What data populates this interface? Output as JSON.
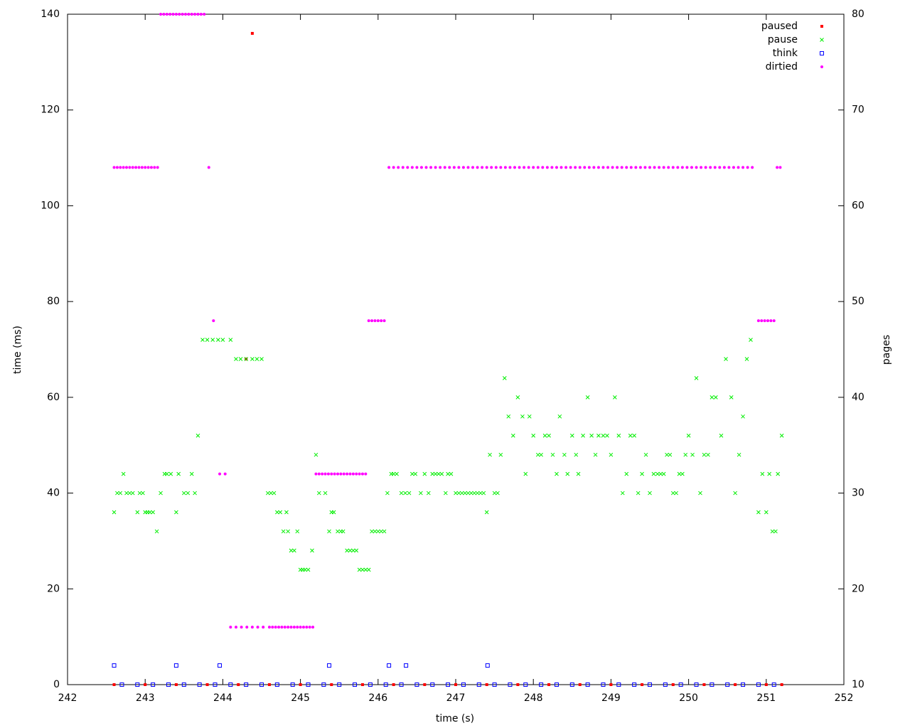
{
  "chart_data": {
    "type": "scatter",
    "x_label": "time (s)",
    "y_label": "time (ms)",
    "y2_label": "pages",
    "xlim": [
      242,
      252
    ],
    "xticks": [
      242,
      243,
      244,
      245,
      246,
      247,
      248,
      249,
      250,
      251,
      252
    ],
    "ylim": [
      0,
      140
    ],
    "yticks": [
      0,
      20,
      40,
      60,
      80,
      100,
      120,
      140
    ],
    "y2lim": [
      10,
      80
    ],
    "y2ticks": [
      10,
      20,
      30,
      40,
      50,
      60,
      70,
      80
    ],
    "legend": "top-right",
    "series": [
      {
        "name": "paused",
        "color": "#ff0000",
        "marker": "square",
        "x": [
          242.6,
          243,
          243.4,
          243.8,
          244.2,
          244.3,
          244.38,
          244.6,
          245,
          245.4,
          245.8,
          246.2,
          246.6,
          247,
          247.4,
          247.8,
          248.2,
          248.6,
          249,
          249.4,
          249.8,
          250.2,
          250.6,
          251,
          251.2
        ],
        "values": [
          0,
          0,
          0,
          0,
          0,
          68,
          136,
          0,
          0,
          0,
          0,
          0,
          0,
          0,
          0,
          0,
          0,
          0,
          0,
          0,
          0,
          0,
          0,
          0,
          0
        ]
      },
      {
        "name": "pause",
        "color": "#00ee00",
        "marker": "cross",
        "x": [
          242.6,
          242.64,
          242.68,
          242.72,
          242.76,
          242.8,
          242.84,
          242.9,
          242.93,
          242.97,
          243,
          243.03,
          243.06,
          243.1,
          243.15,
          243.2,
          243.25,
          243.28,
          243.33,
          243.4,
          243.43,
          243.5,
          243.55,
          243.6,
          243.64,
          243.68,
          243.74,
          243.8,
          243.87,
          243.94,
          244,
          244.1,
          244.17,
          244.23,
          244.3,
          244.38,
          244.44,
          244.5,
          244.58,
          244.62,
          244.66,
          244.7,
          244.74,
          244.78,
          244.82,
          244.84,
          244.88,
          244.92,
          244.96,
          245,
          245.03,
          245.06,
          245.1,
          245.15,
          245.2,
          245.24,
          245.32,
          245.37,
          245.4,
          245.43,
          245.48,
          245.52,
          245.55,
          245.6,
          245.64,
          245.68,
          245.72,
          245.76,
          245.8,
          245.84,
          245.88,
          245.92,
          245.96,
          246,
          246.04,
          246.08,
          246.12,
          246.17,
          246.2,
          246.24,
          246.3,
          246.35,
          246.4,
          246.44,
          246.48,
          246.55,
          246.6,
          246.65,
          246.7,
          246.74,
          246.78,
          246.82,
          246.87,
          246.9,
          246.94,
          247,
          247.04,
          247.08,
          247.12,
          247.16,
          247.2,
          247.24,
          247.28,
          247.32,
          247.36,
          247.4,
          247.44,
          247.5,
          247.54,
          247.58,
          247.63,
          247.68,
          247.74,
          247.8,
          247.86,
          247.9,
          247.95,
          248,
          248.06,
          248.1,
          248.15,
          248.2,
          248.25,
          248.3,
          248.34,
          248.4,
          248.44,
          248.5,
          248.55,
          248.58,
          248.64,
          248.7,
          248.75,
          248.8,
          248.84,
          248.9,
          248.95,
          249,
          249.05,
          249.1,
          249.15,
          249.2,
          249.25,
          249.3,
          249.35,
          249.4,
          249.45,
          249.5,
          249.55,
          249.6,
          249.64,
          249.68,
          249.72,
          249.76,
          249.8,
          249.84,
          249.88,
          249.92,
          249.96,
          250,
          250.05,
          250.1,
          250.15,
          250.2,
          250.25,
          250.3,
          250.35,
          250.42,
          250.48,
          250.55,
          250.6,
          250.65,
          250.7,
          250.75,
          250.8,
          250.9,
          250.95,
          251,
          251.04,
          251.08,
          251.12,
          251.15,
          251.2
        ],
        "values": [
          36,
          40,
          40,
          44,
          40,
          40,
          40,
          36,
          40,
          40,
          36,
          36,
          36,
          36,
          32,
          40,
          44,
          44,
          44,
          36,
          44,
          40,
          40,
          44,
          40,
          52,
          72,
          72,
          72,
          72,
          72,
          72,
          68,
          68,
          68,
          68,
          68,
          68,
          40,
          40,
          40,
          36,
          36,
          32,
          36,
          32,
          28,
          28,
          32,
          24,
          24,
          24,
          24,
          28,
          48,
          40,
          40,
          32,
          36,
          36,
          32,
          32,
          32,
          28,
          28,
          28,
          28,
          24,
          24,
          24,
          24,
          32,
          32,
          32,
          32,
          32,
          40,
          44,
          44,
          44,
          40,
          40,
          40,
          44,
          44,
          40,
          44,
          40,
          44,
          44,
          44,
          44,
          40,
          44,
          44,
          40,
          40,
          40,
          40,
          40,
          40,
          40,
          40,
          40,
          40,
          36,
          48,
          40,
          40,
          48,
          64,
          56,
          52,
          60,
          56,
          44,
          56,
          52,
          48,
          48,
          52,
          52,
          48,
          44,
          56,
          48,
          44,
          52,
          48,
          44,
          52,
          60,
          52,
          48,
          52,
          52,
          52,
          48,
          60,
          52,
          40,
          44,
          52,
          52,
          40,
          44,
          48,
          40,
          44,
          44,
          44,
          44,
          48,
          48,
          40,
          40,
          44,
          44,
          48,
          52,
          48,
          64,
          40,
          48,
          48,
          60,
          60,
          52,
          68,
          60,
          40,
          48,
          56,
          68,
          72,
          36,
          44,
          36,
          44,
          32,
          32,
          44,
          52
        ]
      },
      {
        "name": "think",
        "color": "#0000ff",
        "marker": "open-square",
        "x": [
          242.6,
          243.4,
          243.96,
          245.37,
          246.14,
          246.36,
          247.41,
          242.7,
          242.9,
          243.1,
          243.3,
          243.5,
          243.7,
          243.9,
          244.1,
          244.3,
          244.5,
          244.7,
          244.9,
          245.1,
          245.3,
          245.5,
          245.7,
          245.9,
          246.1,
          246.3,
          246.5,
          246.7,
          246.9,
          247.1,
          247.3,
          247.5,
          247.7,
          247.9,
          248.1,
          248.3,
          248.5,
          248.7,
          248.9,
          249.1,
          249.3,
          249.5,
          249.7,
          249.9,
          250.1,
          250.3,
          250.5,
          250.7,
          250.9,
          251.1
        ],
        "values": [
          4,
          4,
          4,
          4,
          4,
          4,
          4,
          0,
          0,
          0,
          0,
          0,
          0,
          0,
          0,
          0,
          0,
          0,
          0,
          0,
          0,
          0,
          0,
          0,
          0,
          0,
          0,
          0,
          0,
          0,
          0,
          0,
          0,
          0,
          0,
          0,
          0,
          0,
          0,
          0,
          0,
          0,
          0,
          0,
          0,
          0,
          0,
          0,
          0,
          0
        ]
      },
      {
        "name": "dirtied",
        "color": "#ff00ff",
        "marker": "circle",
        "axis": "y2",
        "x": [
          242.6,
          242.64,
          242.68,
          242.72,
          242.76,
          242.8,
          242.84,
          242.88,
          242.92,
          242.96,
          243,
          243.04,
          243.08,
          243.12,
          243.16,
          243.2,
          243.24,
          243.28,
          243.32,
          243.36,
          243.4,
          243.44,
          243.48,
          243.52,
          243.56,
          243.6,
          243.64,
          243.68,
          243.72,
          243.76,
          243.82,
          243.88,
          243.96,
          244.03,
          244.1,
          244.17,
          244.24,
          244.31,
          244.38,
          244.45,
          244.52,
          244.6,
          244.64,
          244.68,
          244.72,
          244.76,
          244.8,
          244.84,
          244.88,
          244.92,
          244.96,
          245,
          245.04,
          245.08,
          245.12,
          245.16,
          245.2,
          245.24,
          245.28,
          245.32,
          245.36,
          245.4,
          245.44,
          245.48,
          245.52,
          245.56,
          245.6,
          245.64,
          245.68,
          245.72,
          245.76,
          245.8,
          245.84,
          245.88,
          245.92,
          245.96,
          246,
          246.04,
          246.08,
          246.14,
          246.2,
          246.26,
          246.32,
          246.38,
          246.44,
          246.5,
          246.56,
          246.62,
          246.68,
          246.74,
          246.8,
          246.86,
          246.92,
          246.98,
          247.04,
          247.1,
          247.16,
          247.22,
          247.28,
          247.34,
          247.4,
          247.46,
          247.52,
          247.58,
          247.64,
          247.7,
          247.76,
          247.82,
          247.88,
          247.94,
          248,
          248.06,
          248.12,
          248.18,
          248.24,
          248.3,
          248.36,
          248.42,
          248.48,
          248.54,
          248.6,
          248.66,
          248.72,
          248.78,
          248.84,
          248.9,
          248.96,
          249.02,
          249.08,
          249.14,
          249.2,
          249.26,
          249.32,
          249.38,
          249.44,
          249.5,
          249.56,
          249.62,
          249.68,
          249.74,
          249.8,
          249.86,
          249.92,
          249.98,
          250.04,
          250.1,
          250.16,
          250.22,
          250.28,
          250.34,
          250.4,
          250.46,
          250.52,
          250.58,
          250.64,
          250.7,
          250.76,
          250.82,
          250.9,
          250.94,
          250.98,
          251.02,
          251.06,
          251.1,
          251.14,
          251.18
        ],
        "values": [
          64,
          64,
          64,
          64,
          64,
          64,
          64,
          64,
          64,
          64,
          64,
          64,
          64,
          64,
          64,
          80,
          80,
          80,
          80,
          80,
          80,
          80,
          80,
          80,
          80,
          80,
          80,
          80,
          80,
          80,
          64,
          48,
          32,
          32,
          16,
          16,
          16,
          16,
          16,
          16,
          16,
          16,
          16,
          16,
          16,
          16,
          16,
          16,
          16,
          16,
          16,
          16,
          16,
          16,
          16,
          16,
          32,
          32,
          32,
          32,
          32,
          32,
          32,
          32,
          32,
          32,
          32,
          32,
          32,
          32,
          32,
          32,
          32,
          48,
          48,
          48,
          48,
          48,
          48,
          64,
          64,
          64,
          64,
          64,
          64,
          64,
          64,
          64,
          64,
          64,
          64,
          64,
          64,
          64,
          64,
          64,
          64,
          64,
          64,
          64,
          64,
          64,
          64,
          64,
          64,
          64,
          64,
          64,
          64,
          64,
          64,
          64,
          64,
          64,
          64,
          64,
          64,
          64,
          64,
          64,
          64,
          64,
          64,
          64,
          64,
          64,
          64,
          64,
          64,
          64,
          64,
          64,
          64,
          64,
          64,
          64,
          64,
          64,
          64,
          64,
          64,
          64,
          64,
          64,
          64,
          64,
          64,
          64,
          64,
          64,
          64,
          64,
          64,
          64,
          64,
          64,
          64,
          64,
          48,
          48,
          48,
          48,
          48,
          48,
          64,
          64
        ]
      }
    ]
  }
}
